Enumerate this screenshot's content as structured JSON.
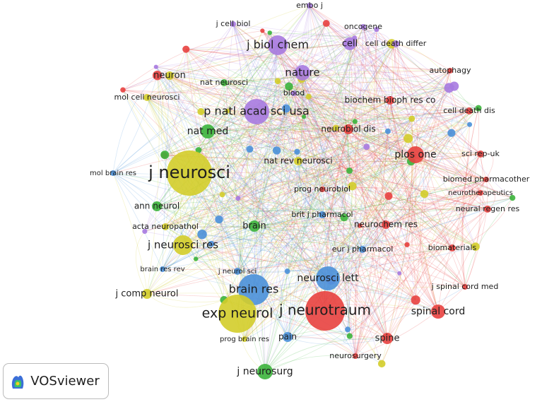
{
  "nodes": [
    {
      "label": "embo j"
    },
    {
      "label": "j cell biol"
    },
    {
      "label": "oncogene"
    },
    {
      "label": "j biol chem"
    },
    {
      "label": "cell"
    },
    {
      "label": "cell death differ"
    },
    {
      "label": "autophagy"
    },
    {
      "label": "neuron"
    },
    {
      "label": "nature"
    },
    {
      "label": "nat neurosci"
    },
    {
      "label": "blood"
    },
    {
      "label": "mol cell neurosci"
    },
    {
      "label": "biochem bioph res co"
    },
    {
      "label": "p natl acad sci usa"
    },
    {
      "label": "cell death dis"
    },
    {
      "label": "nat med"
    },
    {
      "label": "neurobiol dis"
    },
    {
      "label": "plos one"
    },
    {
      "label": "sci rep-uk"
    },
    {
      "label": "j neurosci"
    },
    {
      "label": "mol brain res"
    },
    {
      "label": "nat rev neurosci"
    },
    {
      "label": "biomed pharmacother"
    },
    {
      "label": "prog neurobiol"
    },
    {
      "label": "neurotherapeutics"
    },
    {
      "label": "ann neurol"
    },
    {
      "label": "brit j pharmacol"
    },
    {
      "label": "neural regen res"
    },
    {
      "label": "acta neuropathol"
    },
    {
      "label": "brain"
    },
    {
      "label": "neurochem res"
    },
    {
      "label": "j neurosci res"
    },
    {
      "label": "eur j pharmacol"
    },
    {
      "label": "biomaterials"
    },
    {
      "label": "brain res rev"
    },
    {
      "label": "j neurol sci"
    },
    {
      "label": "neurosci lett"
    },
    {
      "label": "brain res"
    },
    {
      "label": "j comp neurol"
    },
    {
      "label": "j spinal cord med"
    },
    {
      "label": "exp neurol"
    },
    {
      "label": "j neurotraum"
    },
    {
      "label": "spinal cord"
    },
    {
      "label": "prog brain res"
    },
    {
      "label": "pain"
    },
    {
      "label": "spine"
    },
    {
      "label": "neurosurgery"
    },
    {
      "label": "j neurosurg"
    }
  ],
  "logo": {
    "text": "VOSviewer"
  }
}
